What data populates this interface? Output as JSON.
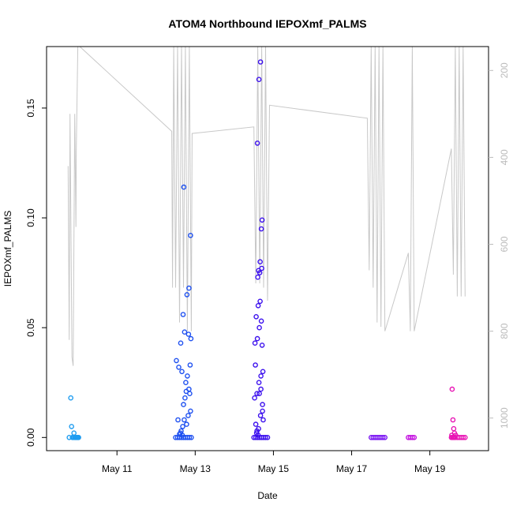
{
  "chart_data": {
    "type": "scatter",
    "title": "ATOM4 Northbound IEPOXmf_PALMS",
    "xlabel": "Date",
    "ylabel": "IEPOXmf_PALMS",
    "x_unit": "day of May",
    "xlim": [
      9.2,
      20.5
    ],
    "ylim": [
      -0.006,
      0.178
    ],
    "y2lim": [
      1075,
      145
    ],
    "x_ticks": [
      11,
      13,
      15,
      17,
      19
    ],
    "x_tick_labels": [
      "May 11",
      "May 13",
      "May 15",
      "May 17",
      "May 19"
    ],
    "y_ticks": [
      0.0,
      0.05,
      0.1,
      0.15
    ],
    "y_tick_labels": [
      "0.00",
      "0.05",
      "0.10",
      "0.15"
    ],
    "y2_ticks": [
      200,
      400,
      600,
      800,
      1000
    ],
    "y2_tick_labels": [
      "200",
      "400",
      "600",
      "800",
      "1000"
    ],
    "colors": {
      "track": "#c8c8c8",
      "flight1": "#1e9cf0",
      "flight2": "#1e50f0",
      "flight3": "#3c10ee",
      "flight4": "#7a14f2",
      "flight5": "#c414e0",
      "flight6": "#e814b4"
    },
    "series": [
      {
        "color_key": "flight1",
        "x": [
          9.82,
          9.78,
          9.84,
          9.86,
          9.89,
          9.9,
          9.92,
          9.94,
          9.96,
          9.98,
          10.0,
          10.02,
          9.88,
          9.93,
          9.97,
          10.01
        ],
        "y": [
          0.018,
          0.0,
          0.005,
          0.0,
          0.0,
          0.002,
          0.0,
          0.0,
          0.0,
          0.0,
          0.0,
          0.0,
          0.0,
          0.0,
          0.0,
          0.0
        ]
      },
      {
        "color_key": "flight2",
        "x": [
          12.5,
          12.55,
          12.6,
          12.65,
          12.7,
          12.75,
          12.8,
          12.85,
          12.9,
          12.62,
          12.68,
          12.72,
          12.78,
          12.82,
          12.88,
          12.7,
          12.74,
          12.86,
          12.84,
          12.76,
          12.66,
          12.58,
          12.52,
          12.8,
          12.87,
          12.89,
          12.83,
          12.73,
          12.63,
          12.56,
          12.6,
          12.69,
          12.79,
          12.84,
          12.88,
          12.71,
          12.77,
          12.64,
          12.67
        ],
        "y": [
          0.0,
          0.0,
          0.0,
          0.0,
          0.0,
          0.0,
          0.0,
          0.0,
          0.0,
          0.002,
          0.005,
          0.008,
          0.006,
          0.01,
          0.012,
          0.015,
          0.018,
          0.02,
          0.022,
          0.025,
          0.03,
          0.032,
          0.035,
          0.028,
          0.033,
          0.045,
          0.047,
          0.048,
          0.043,
          0.008,
          0.0015,
          0.056,
          0.065,
          0.068,
          0.092,
          0.114,
          0.021,
          0.003,
          0.001
        ]
      },
      {
        "color_key": "flight3",
        "x": [
          14.5,
          14.55,
          14.6,
          14.65,
          14.7,
          14.75,
          14.8,
          14.85,
          14.57,
          14.62,
          14.67,
          14.72,
          14.52,
          14.58,
          14.63,
          14.68,
          14.73,
          14.54,
          14.59,
          14.64,
          14.69,
          14.56,
          14.61,
          14.66,
          14.71,
          14.53,
          14.6,
          14.65,
          14.7,
          14.62,
          14.66,
          14.69,
          14.71,
          14.59,
          14.63,
          14.67,
          14.72,
          14.74,
          14.55,
          14.58,
          14.61,
          14.64,
          14.68
        ],
        "y": [
          0.0,
          0.0,
          0.0,
          0.0,
          0.0,
          0.0,
          0.0,
          0.0,
          0.002,
          0.004,
          0.01,
          0.015,
          0.018,
          0.02,
          0.025,
          0.028,
          0.03,
          0.033,
          0.045,
          0.05,
          0.053,
          0.055,
          0.06,
          0.062,
          0.042,
          0.043,
          0.073,
          0.075,
          0.077,
          0.076,
          0.08,
          0.095,
          0.099,
          0.134,
          0.163,
          0.171,
          0.012,
          0.008,
          0.006,
          0.003,
          0.001,
          0.02,
          0.022
        ]
      },
      {
        "color_key": "flight4",
        "x": [
          17.5,
          17.55,
          17.6,
          17.65,
          17.7,
          17.75,
          17.8,
          17.85
        ],
        "y": [
          0.0,
          0.0,
          0.0,
          0.0,
          0.0,
          0.0,
          0.0,
          0.0
        ]
      },
      {
        "color_key": "flight5",
        "x": [
          18.45,
          18.5,
          18.55,
          18.6
        ],
        "y": [
          0.0,
          0.0,
          0.0,
          0.0
        ]
      },
      {
        "color_key": "flight6",
        "x": [
          19.55,
          19.58,
          19.6,
          19.62,
          19.65,
          19.7,
          19.75,
          19.8,
          19.85,
          19.9,
          19.57,
          19.59,
          19.61,
          19.63,
          19.66,
          19.56
        ],
        "y": [
          0.0,
          0.0,
          0.0,
          0.0,
          0.0,
          0.0,
          0.0,
          0.0,
          0.0,
          0.0,
          0.022,
          0.008,
          0.004,
          0.002,
          0.001,
          0.001
        ]
      }
    ],
    "track_x": [
      9.75,
      9.78,
      9.8,
      9.85,
      9.88,
      9.92,
      9.95,
      9.96,
      10.0,
      10.02,
      10.05,
      12.4,
      12.42,
      12.45,
      12.5,
      12.55,
      12.6,
      12.65,
      12.7,
      12.75,
      12.8,
      12.85,
      12.9,
      12.92,
      14.5,
      14.55,
      14.6,
      14.65,
      14.7,
      14.75,
      14.8,
      14.85,
      14.9,
      17.4,
      17.45,
      17.5,
      17.55,
      17.6,
      17.65,
      17.7,
      17.75,
      17.8,
      17.85,
      18.45,
      18.5,
      18.55,
      18.6,
      19.55,
      19.6,
      19.65,
      19.7,
      19.75,
      19.8,
      19.85,
      19.9
    ],
    "track_y2": [
      420,
      820,
      300,
      860,
      880,
      300,
      560,
      380,
      145,
      145,
      145,
      340,
      700,
      145,
      700,
      145,
      780,
      145,
      700,
      145,
      800,
      145,
      800,
      345,
      330,
      690,
      145,
      690,
      145,
      700,
      145,
      730,
      280,
      310,
      660,
      145,
      700,
      145,
      780,
      145,
      790,
      145,
      800,
      620,
      800,
      145,
      800,
      380,
      670,
      145,
      720,
      145,
      720,
      145,
      720
    ]
  }
}
